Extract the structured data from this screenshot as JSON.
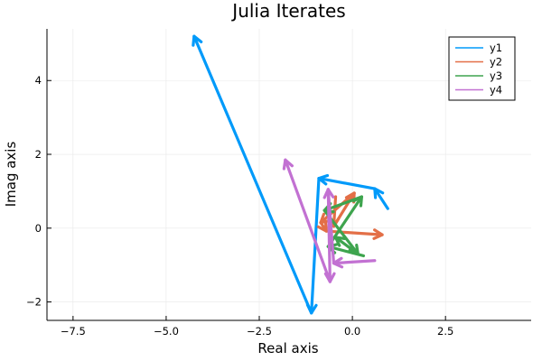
{
  "chart_data": {
    "type": "line",
    "title": "Julia Iterates",
    "xlabel": "Real axis",
    "ylabel": "Imag axis",
    "xlim": [
      -8.2,
      4.8
    ],
    "ylim": [
      -2.5,
      5.4
    ],
    "x_ticks": [
      -7.5,
      -5.0,
      -2.5,
      0.0,
      2.5
    ],
    "x_tick_labels": [
      "−7.5",
      "−5.0",
      "−2.5",
      "0.0",
      "2.5"
    ],
    "y_ticks": [
      -2,
      0,
      2,
      4
    ],
    "y_tick_labels": [
      "−2",
      "0",
      "2",
      "4"
    ],
    "grid": true,
    "legend_position": "top-right",
    "arrows": true,
    "series": [
      {
        "name": "y1",
        "color": "#009AFA",
        "points": [
          [
            0.95,
            0.53
          ],
          [
            0.6,
            1.07
          ],
          [
            -0.9,
            1.35
          ],
          [
            -1.1,
            -2.3
          ],
          [
            -4.25,
            5.2
          ]
        ]
      },
      {
        "name": "y2",
        "color": "#E36F47",
        "points": [
          [
            -0.45,
            0.85
          ],
          [
            -0.5,
            0.05
          ],
          [
            0.05,
            0.95
          ],
          [
            -0.85,
            0.15
          ],
          [
            -0.7,
            -0.08
          ],
          [
            0.8,
            -0.18
          ]
        ]
      },
      {
        "name": "y3",
        "color": "#3EA44E",
        "points": [
          [
            0.3,
            -0.75
          ],
          [
            -0.65,
            -0.5
          ],
          [
            0.25,
            0.85
          ],
          [
            -0.75,
            0.48
          ],
          [
            0.15,
            -0.7
          ],
          [
            -0.45,
            -0.25
          ]
        ]
      },
      {
        "name": "y4",
        "color": "#C271D2",
        "points": [
          [
            0.6,
            -0.88
          ],
          [
            -0.5,
            -0.95
          ],
          [
            -0.65,
            1.05
          ],
          [
            -0.6,
            -1.45
          ],
          [
            -1.8,
            1.85
          ]
        ]
      }
    ]
  }
}
